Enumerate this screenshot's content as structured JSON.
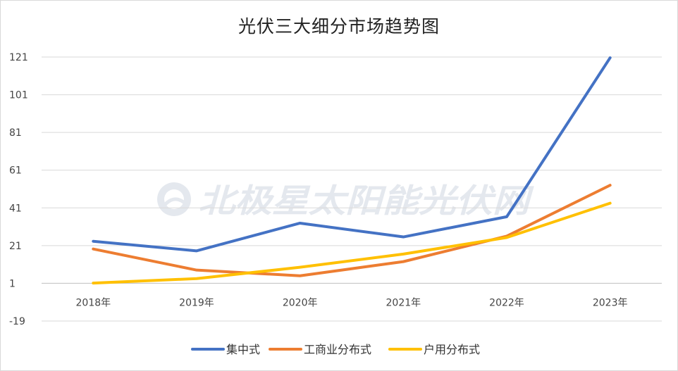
{
  "chart_data": {
    "type": "line",
    "title": "光伏三大细分市场趋势图",
    "categories": [
      "2018年",
      "2019年",
      "2020年",
      "2021年",
      "2022年",
      "2023年"
    ],
    "y_ticks": [
      -19,
      1,
      21,
      41,
      61,
      81,
      101,
      121
    ],
    "ylim": [
      -19,
      121
    ],
    "grid": true,
    "legend_position": "bottom",
    "series": [
      {
        "name": "集中式",
        "color": "#4472C4",
        "values": [
          23.3,
          18.2,
          32.9,
          25.6,
          36.3,
          120.6
        ]
      },
      {
        "name": "工商业分布式",
        "color": "#ED7D31",
        "values": [
          19.2,
          8.0,
          5.0,
          12.5,
          26.0,
          53.0
        ]
      },
      {
        "name": "户用分布式",
        "color": "#FFC000",
        "values": [
          1.1,
          3.5,
          9.5,
          16.5,
          25.3,
          43.5
        ]
      }
    ],
    "watermark": "北极星太阳能光伏网"
  }
}
